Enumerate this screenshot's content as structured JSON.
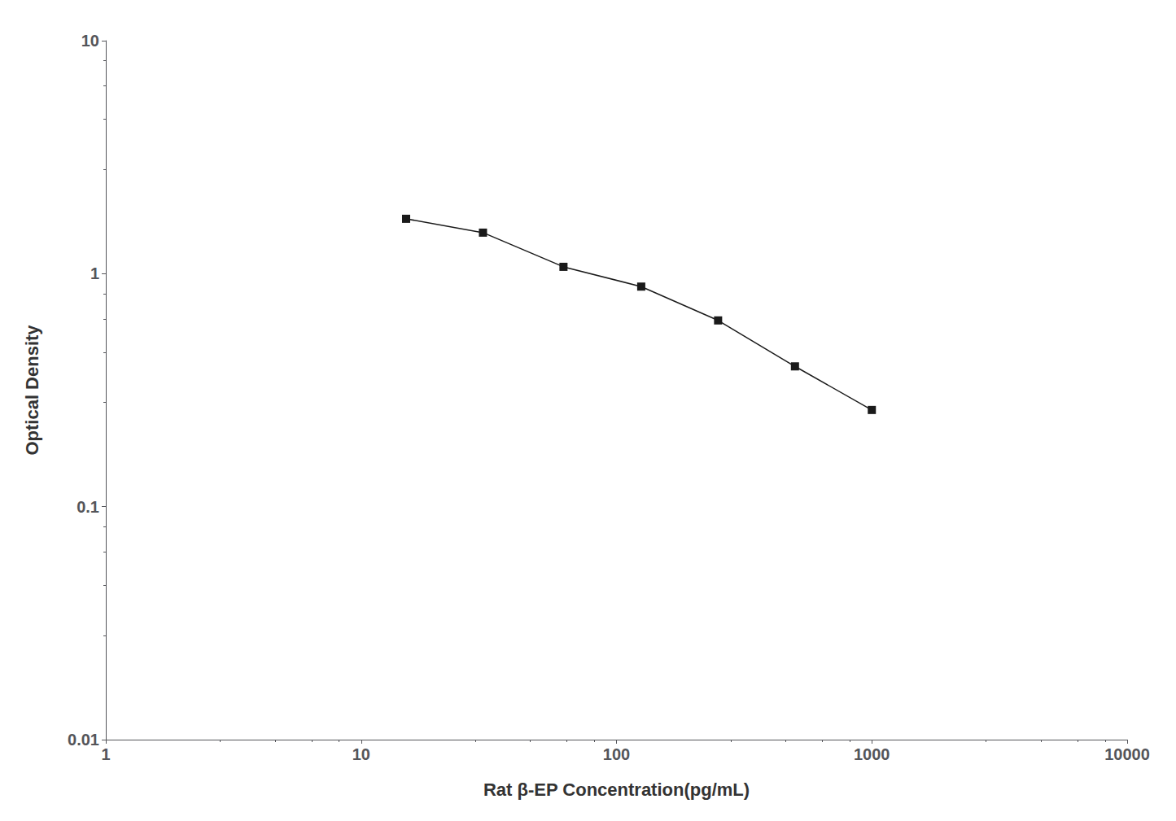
{
  "chart_data": {
    "type": "line",
    "x": [
      15,
      30,
      62,
      125,
      250,
      500,
      1000
    ],
    "values": [
      1.72,
      1.5,
      1.07,
      0.88,
      0.63,
      0.4,
      0.26
    ],
    "xlabel": "Rat β-EP Concentration(pg/mL)",
    "ylabel": "Optical Density",
    "xlim": [
      1,
      10000
    ],
    "ylim": [
      0.01,
      10
    ],
    "xticks": [
      1,
      10,
      100,
      1000,
      10000
    ],
    "yticks": [
      0.01,
      0.1,
      1,
      10
    ],
    "log": true,
    "grid": false,
    "color": "#1a1a1a",
    "marker": "square"
  }
}
